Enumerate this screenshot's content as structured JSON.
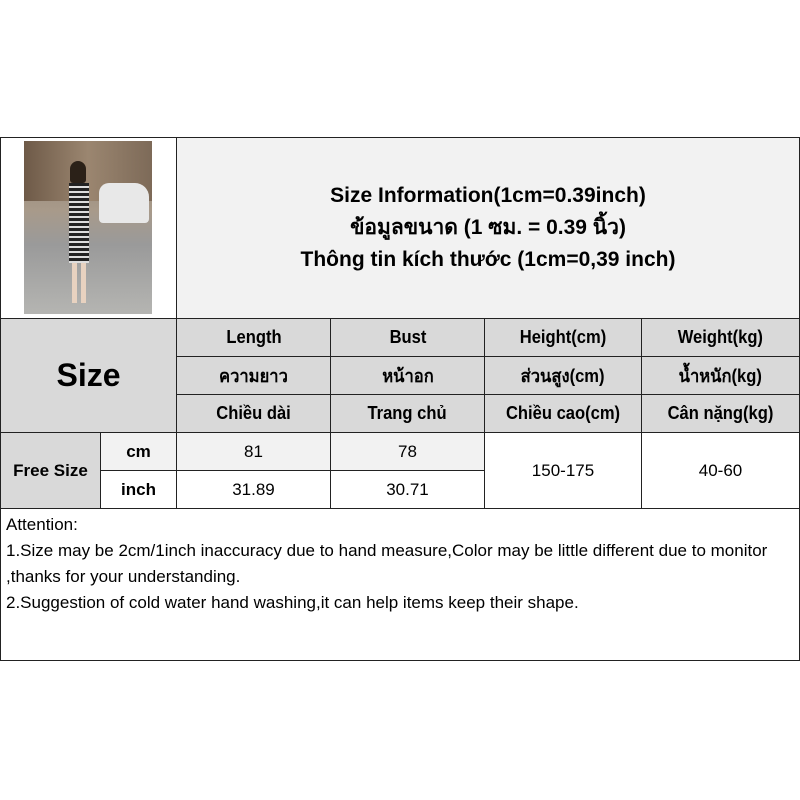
{
  "title": {
    "lines": [
      "Size Information(1cm=0.39inch)",
      "ข้อมูลขนาด (1 ซม. = 0.39 นิ้ว)",
      "Thông tin kích thước (1cm=0,39 inch)"
    ]
  },
  "table": {
    "size_label": "Size",
    "columns": [
      {
        "en": "Length",
        "th": "ความยาว",
        "vi": "Chiều dài"
      },
      {
        "en": "Bust",
        "th": "หน้าอก",
        "vi": "Trang chủ"
      },
      {
        "en": "Height(cm)",
        "th": "ส่วนสูง(cm)",
        "vi": "Chiều cao(cm)"
      },
      {
        "en": "Weight(kg)",
        "th": "น้ำหนัก(kg)",
        "vi": "Cân nặng(kg)"
      }
    ],
    "row_label": "Free Size",
    "units": [
      "cm",
      "inch"
    ],
    "length": [
      "81",
      "31.89"
    ],
    "bust": [
      "78",
      "30.71"
    ],
    "height": "150-175",
    "weight": "40-60"
  },
  "attention": {
    "heading": "Attention:",
    "items": [
      "1.Size may be 2cm/1inch inaccuracy due to hand measure,Color may be little different due to monitor ,thanks for your understanding.",
      "2.Suggestion of cold water hand washing,it can help items keep their shape."
    ]
  }
}
